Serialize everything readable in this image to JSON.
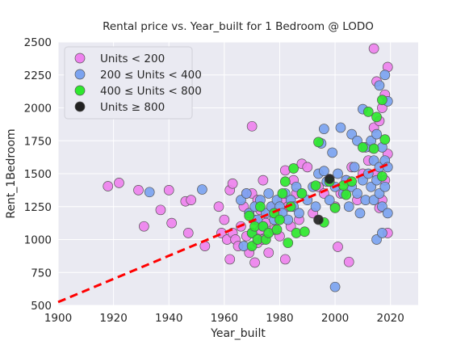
{
  "chart_data": {
    "type": "scatter",
    "title": "Rental price vs. Year_built for 1 Bedroom @ LODO",
    "xlabel": "Year_built",
    "ylabel": "Rent_1Bedroom",
    "xlim": [
      1900,
      2030
    ],
    "ylim": [
      500,
      2500
    ],
    "xticks": [
      1900,
      1920,
      1940,
      1960,
      1980,
      2000,
      2020
    ],
    "yticks": [
      500,
      750,
      1000,
      1250,
      1500,
      1750,
      2000,
      2250,
      2500
    ],
    "grid": true,
    "legend_position": "top-left",
    "trendline": {
      "x": [
        1900,
        2020
      ],
      "y": [
        525,
        1580
      ],
      "color": "#ff0000",
      "style": "dashed"
    },
    "series": [
      {
        "name": "Units < 200",
        "color": "#ee82ee",
        "points": [
          [
            1918,
            1405
          ],
          [
            1922,
            1430
          ],
          [
            1929,
            1375
          ],
          [
            1931,
            1100
          ],
          [
            1937,
            1225
          ],
          [
            1940,
            1375
          ],
          [
            1941,
            1125
          ],
          [
            1946,
            1290
          ],
          [
            1947,
            1050
          ],
          [
            1948,
            1300
          ],
          [
            1953,
            950
          ],
          [
            1958,
            1250
          ],
          [
            1959,
            1050
          ],
          [
            1960,
            1150
          ],
          [
            1961,
            1000
          ],
          [
            1962,
            850
          ],
          [
            1962,
            1375
          ],
          [
            1963,
            1050
          ],
          [
            1963,
            1425
          ],
          [
            1964,
            1000
          ],
          [
            1965,
            950
          ],
          [
            1966,
            1100
          ],
          [
            1967,
            1250
          ],
          [
            1968,
            1025
          ],
          [
            1968,
            1350
          ],
          [
            1969,
            900
          ],
          [
            1969,
            1200
          ],
          [
            1970,
            1860
          ],
          [
            1970,
            1350
          ],
          [
            1971,
            825
          ],
          [
            1971,
            1150
          ],
          [
            1972,
            975
          ],
          [
            1972,
            1300
          ],
          [
            1973,
            1075
          ],
          [
            1973,
            1225
          ],
          [
            1974,
            1000
          ],
          [
            1974,
            1450
          ],
          [
            1975,
            1125
          ],
          [
            1976,
            900
          ],
          [
            1977,
            1250
          ],
          [
            1978,
            1075
          ],
          [
            1979,
            1200
          ],
          [
            1980,
            1025
          ],
          [
            1981,
            1300
          ],
          [
            1982,
            850
          ],
          [
            1982,
            1525
          ],
          [
            1983,
            1250
          ],
          [
            1984,
            1100
          ],
          [
            1985,
            1450
          ],
          [
            1986,
            1350
          ],
          [
            1987,
            1150
          ],
          [
            1988,
            1575
          ],
          [
            1990,
            1550
          ],
          [
            1992,
            1200
          ],
          [
            1994,
            1400
          ],
          [
            1996,
            1350
          ],
          [
            1998,
            1450
          ],
          [
            2000,
            1250
          ],
          [
            2001,
            945
          ],
          [
            2002,
            1350
          ],
          [
            2004,
            1450
          ],
          [
            2005,
            830
          ],
          [
            2006,
            1550
          ],
          [
            2008,
            1300
          ],
          [
            2010,
            1500
          ],
          [
            2012,
            1600
          ],
          [
            2013,
            1700
          ],
          [
            2014,
            2450
          ],
          [
            2014,
            1850
          ],
          [
            2015,
            2200
          ],
          [
            2015,
            1500
          ],
          [
            2016,
            1900
          ],
          [
            2016,
            1240
          ],
          [
            2017,
            1300
          ],
          [
            2017,
            2000
          ],
          [
            2018,
            2100
          ],
          [
            2018,
            1450
          ],
          [
            2019,
            2310
          ],
          [
            2019,
            1050
          ],
          [
            2019,
            1650
          ]
        ]
      },
      {
        "name": "200 ≤ Units < 400",
        "color": "#7ba3f0",
        "points": [
          [
            1933,
            1360
          ],
          [
            1952,
            1380
          ],
          [
            1966,
            1300
          ],
          [
            1967,
            950
          ],
          [
            1968,
            1350
          ],
          [
            1969,
            1200
          ],
          [
            1970,
            1050
          ],
          [
            1971,
            1250
          ],
          [
            1972,
            1150
          ],
          [
            1973,
            1300
          ],
          [
            1974,
            1100
          ],
          [
            1975,
            1200
          ],
          [
            1976,
            1350
          ],
          [
            1977,
            1250
          ],
          [
            1978,
            1150
          ],
          [
            1979,
            1300
          ],
          [
            1980,
            1250
          ],
          [
            1981,
            1200
          ],
          [
            1982,
            1350
          ],
          [
            1983,
            1150
          ],
          [
            1984,
            1300
          ],
          [
            1985,
            1250
          ],
          [
            1986,
            1400
          ],
          [
            1987,
            1200
          ],
          [
            1988,
            1350
          ],
          [
            1990,
            1300
          ],
          [
            1992,
            1400
          ],
          [
            1993,
            1250
          ],
          [
            1994,
            1500
          ],
          [
            1995,
            1730
          ],
          [
            1996,
            1520
          ],
          [
            1996,
            1840
          ],
          [
            1997,
            1440
          ],
          [
            1998,
            1300
          ],
          [
            1999,
            1660
          ],
          [
            2000,
            1400
          ],
          [
            2000,
            640
          ],
          [
            2001,
            1500
          ],
          [
            2002,
            1850
          ],
          [
            2003,
            1350
          ],
          [
            2004,
            1450
          ],
          [
            2005,
            1250
          ],
          [
            2006,
            1800
          ],
          [
            2006,
            1400
          ],
          [
            2007,
            1550
          ],
          [
            2008,
            1350
          ],
          [
            2008,
            1750
          ],
          [
            2009,
            1200
          ],
          [
            2010,
            1990
          ],
          [
            2010,
            1450
          ],
          [
            2011,
            1700
          ],
          [
            2011,
            1300
          ],
          [
            2012,
            1500
          ],
          [
            2013,
            1400
          ],
          [
            2013,
            1750
          ],
          [
            2014,
            1600
          ],
          [
            2014,
            1300
          ],
          [
            2015,
            1800
          ],
          [
            2015,
            1450
          ],
          [
            2015,
            1000
          ],
          [
            2016,
            2170
          ],
          [
            2016,
            1550
          ],
          [
            2016,
            1350
          ],
          [
            2017,
            1700
          ],
          [
            2017,
            1250
          ],
          [
            2017,
            1050
          ],
          [
            2018,
            2250
          ],
          [
            2018,
            1600
          ],
          [
            2018,
            1400
          ],
          [
            2019,
            2050
          ],
          [
            2019,
            1200
          ],
          [
            2019,
            1550
          ]
        ]
      },
      {
        "name": "400 ≤ Units < 800",
        "color": "#2ee82e",
        "points": [
          [
            1969,
            1180
          ],
          [
            1970,
            1050
          ],
          [
            1970,
            950
          ],
          [
            1971,
            1100
          ],
          [
            1972,
            1000
          ],
          [
            1973,
            1250
          ],
          [
            1974,
            1100
          ],
          [
            1975,
            1000
          ],
          [
            1976,
            1050
          ],
          [
            1978,
            1200
          ],
          [
            1979,
            1075
          ],
          [
            1980,
            1150
          ],
          [
            1981,
            1350
          ],
          [
            1982,
            1440
          ],
          [
            1983,
            975
          ],
          [
            1984,
            1250
          ],
          [
            1985,
            1540
          ],
          [
            1986,
            1050
          ],
          [
            1988,
            1350
          ],
          [
            1989,
            1060
          ],
          [
            1993,
            1410
          ],
          [
            1994,
            1740
          ],
          [
            1996,
            1130
          ],
          [
            1998,
            1440
          ],
          [
            2000,
            1240
          ],
          [
            2003,
            1410
          ],
          [
            2004,
            1340
          ],
          [
            2006,
            1440
          ],
          [
            2010,
            1700
          ],
          [
            2012,
            1970
          ],
          [
            2014,
            1690
          ],
          [
            2015,
            1930
          ],
          [
            2017,
            2060
          ],
          [
            2017,
            1480
          ],
          [
            2018,
            1760
          ]
        ]
      },
      {
        "name": "Units ≥ 800",
        "color": "#222222",
        "points": [
          [
            1994,
            1150
          ],
          [
            1998,
            1460
          ]
        ]
      }
    ]
  }
}
